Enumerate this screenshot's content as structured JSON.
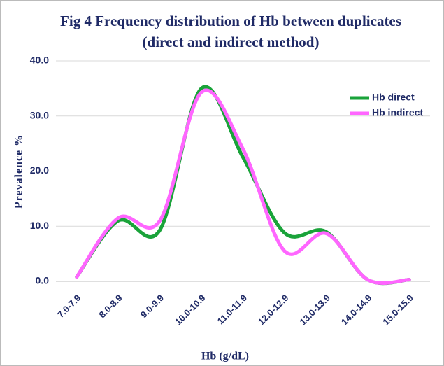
{
  "chart_data": {
    "type": "line",
    "title": "Fig 4 Frequency distribution  of Hb between duplicates",
    "subtitle": "(direct and indirect method)",
    "x_label": "Hb  (g/dL)",
    "y_label": "Prevalence  %",
    "categories": [
      "7.0-7.9",
      "8.0-8.9",
      "9.0-9.9",
      "10.0-10.9",
      "11.0-11.9",
      "12.0-12.9",
      "13.0-13.9",
      "14.0-14.9",
      "15.0-15.9"
    ],
    "series": [
      {
        "name": "Hb direct",
        "color": "#1aa33a",
        "values": [
          0.8,
          11,
          9.3,
          35,
          22.5,
          8.8,
          9,
          0.3,
          0.3
        ]
      },
      {
        "name": "Hb indirect",
        "color": "#ff66ff",
        "values": [
          0.8,
          11.5,
          11,
          34.3,
          24,
          5.5,
          8.7,
          0.3,
          0.3
        ]
      }
    ],
    "ylim": [
      0,
      40
    ],
    "yticks": [
      {
        "value": 0,
        "label": "0.0"
      },
      {
        "value": 10,
        "label": "10.0"
      },
      {
        "value": 20,
        "label": "20.0"
      },
      {
        "value": 30,
        "label": "30.0"
      },
      {
        "value": 40,
        "label": "40.0"
      }
    ],
    "grid": true,
    "smooth": true,
    "legend": "upper right"
  }
}
